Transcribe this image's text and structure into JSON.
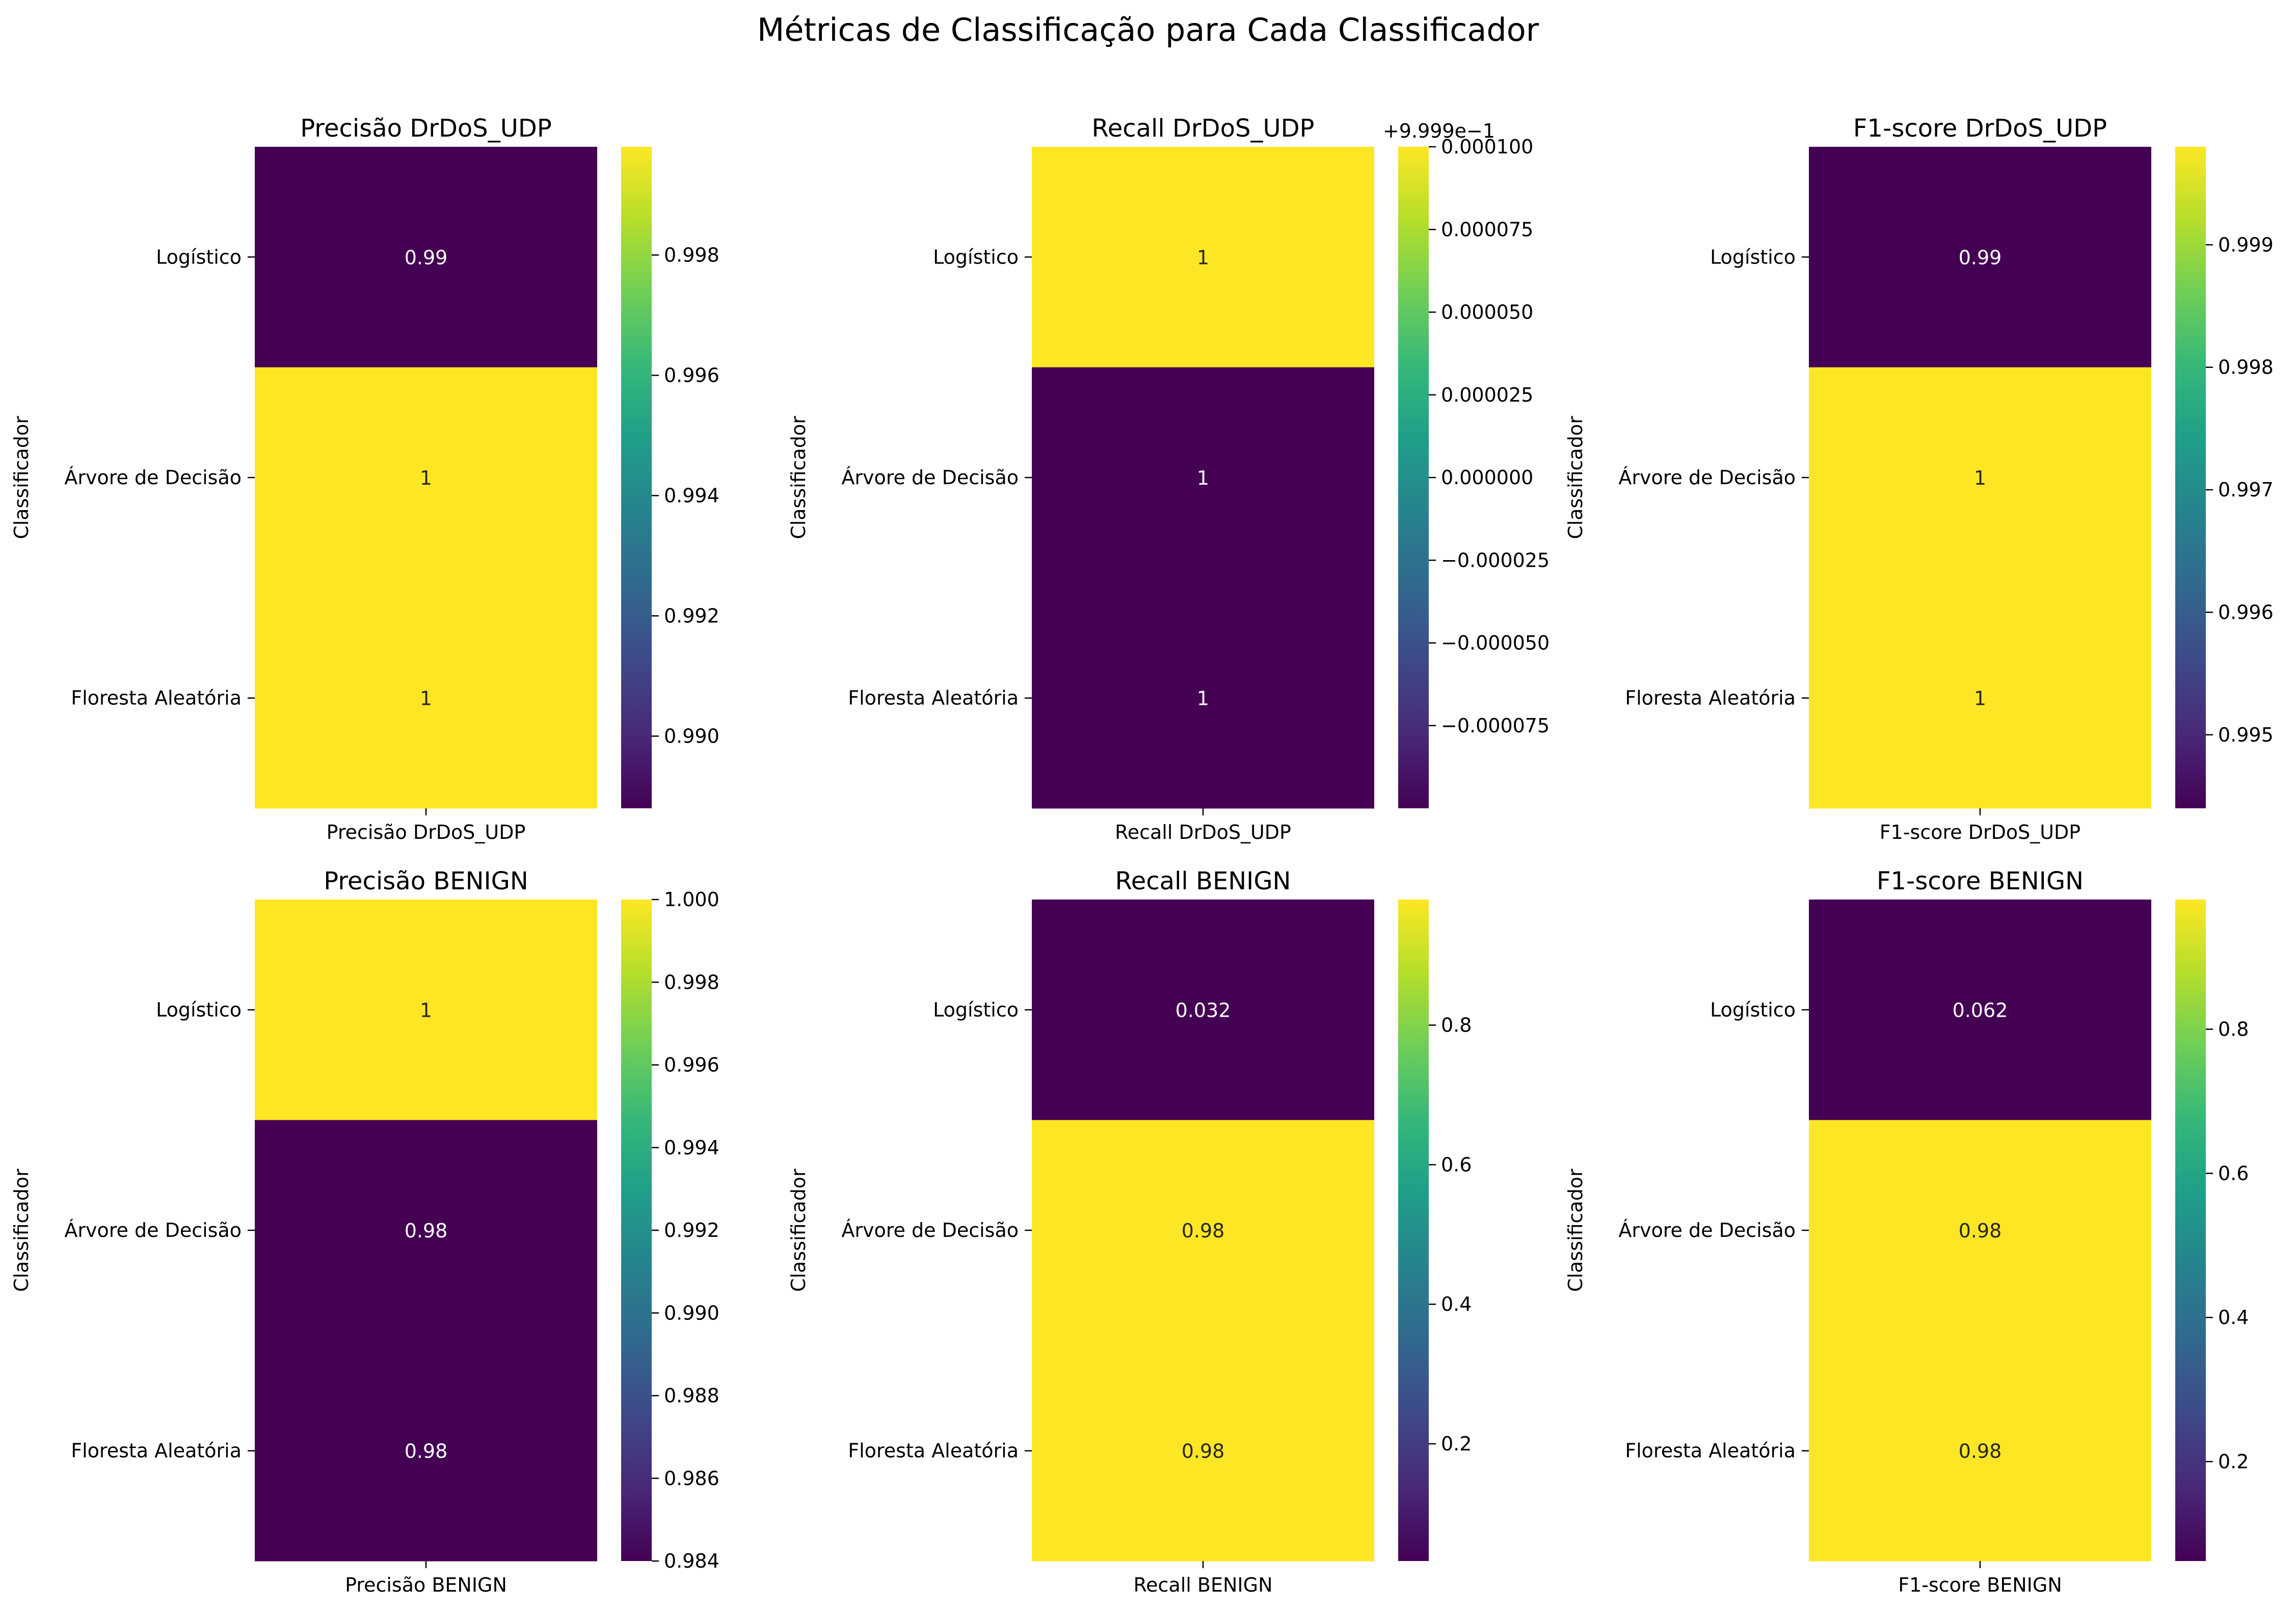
{
  "figure": {
    "title": "Métricas de Classificação para Cada Classificador"
  },
  "colormap": {
    "name": "viridis",
    "stops": [
      "#440154",
      "#482878",
      "#3e4989",
      "#31688e",
      "#26828e",
      "#1f9e89",
      "#35b779",
      "#6ece58",
      "#b5de2b",
      "#fde725"
    ]
  },
  "chart_data": [
    {
      "type": "heatmap",
      "title": "Precisão DrDoS_UDP",
      "xlabel": "Precisão DrDoS_UDP",
      "ylabel": "Classificador",
      "categories": [
        "Logístico",
        "Árvore de Decisão",
        "Floresta Aleatória"
      ],
      "values": [
        0.9888,
        0.9998,
        0.9998
      ],
      "annotations": [
        "0.99",
        "1",
        "1"
      ],
      "colorbar": {
        "range": [
          0.9888,
          0.9998
        ],
        "ticks": [
          0.99,
          0.992,
          0.994,
          0.996,
          0.998
        ],
        "tick_labels": [
          "0.990",
          "0.992",
          "0.994",
          "0.996",
          "0.998"
        ],
        "offset_text": ""
      }
    },
    {
      "type": "heatmap",
      "title": "Recall DrDoS_UDP",
      "xlabel": "Recall DrDoS_UDP",
      "ylabel": "Classificador",
      "categories": [
        "Logístico",
        "Árvore de Decisão",
        "Floresta Aleatória"
      ],
      "values": [
        0.99999999,
        0.99989999,
        0.99989999
      ],
      "annotations": [
        "1",
        "1",
        "1"
      ],
      "colorbar": {
        "range": [
          -0.0001,
          0.0001
        ],
        "ticks": [
          -7.5e-05,
          -5e-05,
          -2.5e-05,
          0,
          2.5e-05,
          5e-05,
          7.5e-05,
          0.0001
        ],
        "tick_labels": [
          "−0.000075",
          "−0.000050",
          "−0.000025",
          "0.000000",
          "0.000025",
          "0.000050",
          "0.000075",
          "0.000100"
        ],
        "offset_text": "+9.999e−1"
      }
    },
    {
      "type": "heatmap",
      "title": "F1-score DrDoS_UDP",
      "xlabel": "F1-score DrDoS_UDP",
      "ylabel": "Classificador",
      "categories": [
        "Logístico",
        "Árvore de Decisão",
        "Floresta Aleatória"
      ],
      "values": [
        0.9944,
        0.9998,
        0.9998
      ],
      "annotations": [
        "0.99",
        "1",
        "1"
      ],
      "colorbar": {
        "range": [
          0.9944,
          0.9998
        ],
        "ticks": [
          0.995,
          0.996,
          0.997,
          0.998,
          0.999
        ],
        "tick_labels": [
          "0.995",
          "0.996",
          "0.997",
          "0.998",
          "0.999"
        ],
        "offset_text": ""
      }
    },
    {
      "type": "heatmap",
      "title": "Precisão BENIGN",
      "xlabel": "Precisão BENIGN",
      "ylabel": "Classificador",
      "categories": [
        "Logístico",
        "Árvore de Decisão",
        "Floresta Aleatória"
      ],
      "values": [
        1.0,
        0.984,
        0.984
      ],
      "annotations": [
        "1",
        "0.98",
        "0.98"
      ],
      "colorbar": {
        "range": [
          0.984,
          1.0
        ],
        "ticks": [
          0.984,
          0.986,
          0.988,
          0.99,
          0.992,
          0.994,
          0.996,
          0.998,
          1.0
        ],
        "tick_labels": [
          "0.984",
          "0.986",
          "0.988",
          "0.990",
          "0.992",
          "0.994",
          "0.996",
          "0.998",
          "1.000"
        ],
        "offset_text": ""
      }
    },
    {
      "type": "heatmap",
      "title": "Recall BENIGN",
      "xlabel": "Recall BENIGN",
      "ylabel": "Classificador",
      "categories": [
        "Logístico",
        "Árvore de Decisão",
        "Floresta Aleatória"
      ],
      "values": [
        0.032,
        0.98,
        0.98
      ],
      "annotations": [
        "0.032",
        "0.98",
        "0.98"
      ],
      "colorbar": {
        "range": [
          0.032,
          0.98
        ],
        "ticks": [
          0.2,
          0.4,
          0.6,
          0.8
        ],
        "tick_labels": [
          "0.2",
          "0.4",
          "0.6",
          "0.8"
        ],
        "offset_text": ""
      }
    },
    {
      "type": "heatmap",
      "title": "F1-score BENIGN",
      "xlabel": "F1-score BENIGN",
      "ylabel": "Classificador",
      "categories": [
        "Logístico",
        "Árvore de Decisão",
        "Floresta Aleatória"
      ],
      "values": [
        0.062,
        0.98,
        0.98
      ],
      "annotations": [
        "0.062",
        "0.98",
        "0.98"
      ],
      "colorbar": {
        "range": [
          0.062,
          0.98
        ],
        "ticks": [
          0.2,
          0.4,
          0.6,
          0.8
        ],
        "tick_labels": [
          "0.2",
          "0.4",
          "0.6",
          "0.8"
        ],
        "offset_text": ""
      }
    }
  ]
}
